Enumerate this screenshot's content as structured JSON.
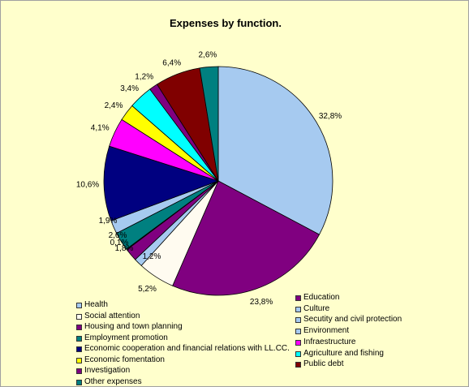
{
  "chart_data": {
    "type": "pie",
    "title": "Expenses by function.",
    "slices": [
      {
        "name": "Health",
        "value": 32.8,
        "label": "32,8%",
        "color": "#a6caf0"
      },
      {
        "name": "Education",
        "value": 23.8,
        "label": "23,8%",
        "color": "#800080"
      },
      {
        "name": "Social attention",
        "value": 5.2,
        "label": "5,2%",
        "color": "#fffbf0"
      },
      {
        "name": "Culture",
        "value": 1.2,
        "label": "1,2%",
        "color": "#a6caf0"
      },
      {
        "name": "Housing and town planning",
        "value": 1.8,
        "label": "1,8%",
        "color": "#800080"
      },
      {
        "name": "Secutity and civil protection",
        "value": 0.1,
        "label": "0,1%",
        "color": "#a6caf0"
      },
      {
        "name": "Employment promotion",
        "value": 2.6,
        "label": "2,6%",
        "color": "#008080"
      },
      {
        "name": "Environment",
        "value": 1.9,
        "label": "1,9%",
        "color": "#a6caf0"
      },
      {
        "name": "Economic cooperation and financial relations with LL.CC.",
        "value": 10.6,
        "label": "10,6%",
        "color": "#000080"
      },
      {
        "name": "Infraestructure",
        "value": 4.1,
        "label": "4,1%",
        "color": "#ff00ff"
      },
      {
        "name": "Economic fomentation",
        "value": 2.4,
        "label": "2,4%",
        "color": "#ffff00"
      },
      {
        "name": "Agriculture and fishing",
        "value": 3.4,
        "label": "3,4%",
        "color": "#00ffff"
      },
      {
        "name": "Investigation",
        "value": 1.2,
        "label": "1,2%",
        "color": "#800080"
      },
      {
        "name": "Public debt",
        "value": 6.4,
        "label": "6,4%",
        "color": "#800000"
      },
      {
        "name": "Other expenses",
        "value": 2.6,
        "label": "2,6%",
        "color": "#008080"
      }
    ],
    "legend_left": [
      {
        "label": "Health",
        "color": "#a6caf0"
      },
      {
        "label": "Social attention",
        "color": "#fffbf0"
      },
      {
        "label": "Housing and town planning",
        "color": "#800080"
      },
      {
        "label": "Employment promotion",
        "color": "#008080"
      },
      {
        "label": "Economic cooperation and financial relations with LL.CC.",
        "color": "#000080"
      },
      {
        "label": "Economic fomentation",
        "color": "#ffff00"
      },
      {
        "label": "Investigation",
        "color": "#800080"
      },
      {
        "label": "Other expenses",
        "color": "#008080"
      }
    ],
    "legend_right": [
      {
        "label": "Education",
        "color": "#800080"
      },
      {
        "label": "Culture",
        "color": "#a6caf0"
      },
      {
        "label": "Secutity and civil protection",
        "color": "#a6caf0"
      },
      {
        "label": "Environment",
        "color": "#a6caf0"
      },
      {
        "label": "Infraestructure",
        "color": "#ff00ff"
      },
      {
        "label": "Agriculture and fishing",
        "color": "#00ffff"
      },
      {
        "label": "Public debt",
        "color": "#800000"
      }
    ]
  }
}
